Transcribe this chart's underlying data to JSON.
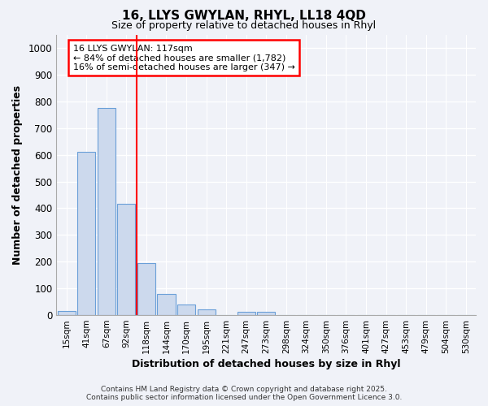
{
  "title_line1": "16, LLYS GWYLAN, RHYL, LL18 4QD",
  "title_line2": "Size of property relative to detached houses in Rhyl",
  "xlabel": "Distribution of detached houses by size in Rhyl",
  "ylabel": "Number of detached properties",
  "categories": [
    "15sqm",
    "41sqm",
    "67sqm",
    "92sqm",
    "118sqm",
    "144sqm",
    "170sqm",
    "195sqm",
    "221sqm",
    "247sqm",
    "273sqm",
    "298sqm",
    "324sqm",
    "350sqm",
    "376sqm",
    "401sqm",
    "427sqm",
    "453sqm",
    "479sqm",
    "504sqm",
    "530sqm"
  ],
  "values": [
    15,
    610,
    775,
    415,
    195,
    78,
    40,
    20,
    0,
    13,
    13,
    0,
    0,
    0,
    0,
    0,
    0,
    0,
    0,
    0,
    0
  ],
  "bar_color": "#ccd9ed",
  "bar_edge_color": "#6a9fd8",
  "background_color": "#f0f2f8",
  "grid_color": "#ffffff",
  "red_line_x": 4,
  "annotation_text_line1": "16 LLYS GWYLAN: 117sqm",
  "annotation_text_line2": "← 84% of detached houses are smaller (1,782)",
  "annotation_text_line3": "16% of semi-detached houses are larger (347) →",
  "ylim": [
    0,
    1050
  ],
  "yticks": [
    0,
    100,
    200,
    300,
    400,
    500,
    600,
    700,
    800,
    900,
    1000
  ],
  "footer_line1": "Contains HM Land Registry data © Crown copyright and database right 2025.",
  "footer_line2": "Contains public sector information licensed under the Open Government Licence 3.0."
}
